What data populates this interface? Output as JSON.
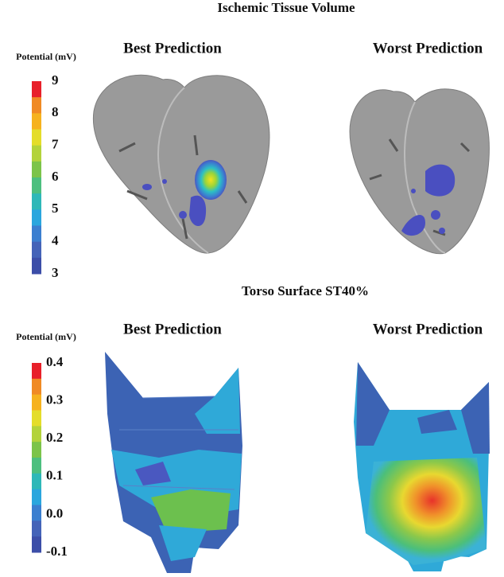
{
  "panels": [
    {
      "title": "Ischemic Tissue Volume",
      "colorbar": {
        "label": "Potential (mV)",
        "ticks": [
          "9",
          "8",
          "7",
          "6",
          "5",
          "4",
          "3"
        ]
      },
      "subtitles": [
        "Best Prediction",
        "Worst Prediction"
      ]
    },
    {
      "title": "Torso Surface ST40%",
      "colorbar": {
        "label": "Potential (mV)",
        "ticks": [
          "0.4",
          "0.3",
          "0.2",
          "0.1",
          "0.0",
          "-0.1"
        ]
      },
      "subtitles": [
        "Best Prediction",
        "Worst Prediction"
      ]
    }
  ]
}
